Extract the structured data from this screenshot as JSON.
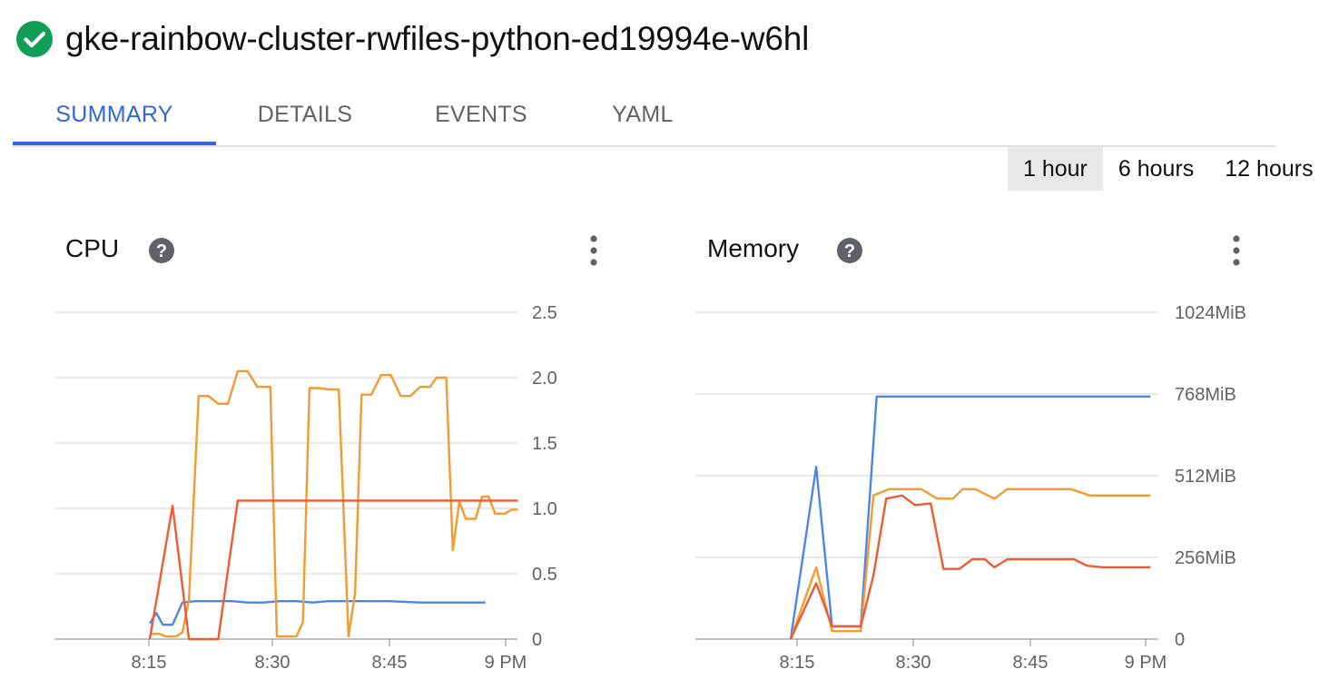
{
  "header": {
    "status": "check-circle-icon",
    "title": "gke-rainbow-cluster-rwfiles-python-ed19994e-w6hl"
  },
  "tabs": [
    {
      "label": "SUMMARY",
      "active": true
    },
    {
      "label": "DETAILS",
      "active": false
    },
    {
      "label": "EVENTS",
      "active": false
    },
    {
      "label": "YAML",
      "active": false
    }
  ],
  "time_range": {
    "options": [
      "1 hour",
      "6 hours",
      "12 hours"
    ],
    "selected": "1 hour"
  },
  "colors": {
    "blue": "#4a86e8",
    "orange": "#f49a2e",
    "red": "#ee5a31",
    "accent": "#3367d6",
    "success": "#0f9d58"
  },
  "chart_data": [
    {
      "type": "line",
      "title": "CPU",
      "x_ticks": [
        "8:15",
        "8:30",
        "8:45",
        "9 PM"
      ],
      "y_ticks": [
        "0",
        "0.5",
        "1.0",
        "1.5",
        "2.0",
        "2.5"
      ],
      "ylim": [
        0,
        2.5
      ],
      "grid": true,
      "series": [
        {
          "color": "#4a86e8",
          "points": [
            [
              8.2,
              0.12
            ],
            [
              8.4,
              0.2
            ],
            [
              8.6,
              0.11
            ],
            [
              8.9,
              0.11
            ],
            [
              9.2,
              0.28
            ],
            [
              9.6,
              0.29
            ],
            [
              10.2,
              0.29
            ],
            [
              10.7,
              0.29
            ],
            [
              11.2,
              0.28
            ],
            [
              11.7,
              0.28
            ],
            [
              12.2,
              0.29
            ],
            [
              12.7,
              0.29
            ],
            [
              13.2,
              0.28
            ],
            [
              13.7,
              0.29
            ],
            [
              14.5,
              0.29
            ],
            [
              15.5,
              0.29
            ],
            [
              16.5,
              0.28
            ],
            [
              17.5,
              0.28
            ],
            [
              18.5,
              0.28
            ]
          ]
        },
        {
          "color": "#f49a2e",
          "points": [
            [
              8.2,
              0.04
            ],
            [
              8.5,
              0.04
            ],
            [
              8.7,
              0.02
            ],
            [
              9.0,
              0.02
            ],
            [
              9.2,
              0.05
            ],
            [
              9.4,
              0.3
            ],
            [
              9.7,
              1.86
            ],
            [
              10.0,
              1.86
            ],
            [
              10.3,
              1.8
            ],
            [
              10.6,
              1.8
            ],
            [
              10.9,
              2.05
            ],
            [
              11.2,
              2.05
            ],
            [
              11.5,
              1.93
            ],
            [
              11.9,
              1.93
            ],
            [
              12.1,
              0.02
            ],
            [
              12.4,
              0.02
            ],
            [
              12.7,
              0.02
            ],
            [
              12.9,
              0.13
            ],
            [
              13.1,
              1.92
            ],
            [
              13.4,
              1.92
            ],
            [
              13.7,
              1.91
            ],
            [
              14.0,
              1.91
            ],
            [
              14.3,
              0.02
            ],
            [
              14.5,
              0.35
            ],
            [
              14.7,
              1.87
            ],
            [
              15.0,
              1.87
            ],
            [
              15.3,
              2.02
            ],
            [
              15.6,
              2.02
            ],
            [
              15.9,
              1.86
            ],
            [
              16.2,
              1.86
            ],
            [
              16.5,
              1.93
            ],
            [
              16.8,
              1.93
            ],
            [
              17.0,
              2.0
            ],
            [
              17.3,
              2.0
            ],
            [
              17.5,
              0.68
            ],
            [
              17.7,
              1.05
            ],
            [
              17.9,
              0.92
            ],
            [
              18.2,
              0.92
            ],
            [
              18.4,
              1.09
            ],
            [
              18.6,
              1.09
            ],
            [
              18.8,
              0.96
            ],
            [
              19.1,
              0.96
            ],
            [
              19.3,
              0.99
            ],
            [
              19.5,
              0.99
            ]
          ]
        },
        {
          "color": "#ee5a31",
          "points": [
            [
              8.2,
              0.0
            ],
            [
              8.9,
              1.02
            ],
            [
              9.4,
              0.0
            ],
            [
              9.9,
              0.0
            ],
            [
              10.3,
              0.0
            ],
            [
              10.9,
              1.06
            ],
            [
              11.5,
              1.06
            ],
            [
              19.5,
              1.06
            ]
          ]
        }
      ]
    },
    {
      "type": "line",
      "title": "Memory",
      "x_ticks": [
        "8:15",
        "8:30",
        "8:45",
        "9 PM"
      ],
      "y_ticks": [
        "0",
        "256MiB",
        "512MiB",
        "768MiB",
        "1024MiB"
      ],
      "ylim": [
        0,
        1024
      ],
      "grid": true,
      "series": [
        {
          "color": "#4a86e8",
          "points": [
            [
              8.2,
              0
            ],
            [
              9.0,
              540
            ],
            [
              9.5,
              40
            ],
            [
              10.4,
              40
            ],
            [
              10.9,
              760
            ],
            [
              19.5,
              760
            ]
          ]
        },
        {
          "color": "#f49a2e",
          "points": [
            [
              8.2,
              0
            ],
            [
              9.0,
              225
            ],
            [
              9.5,
              25
            ],
            [
              10.4,
              25
            ],
            [
              10.8,
              450
            ],
            [
              11.3,
              470
            ],
            [
              11.6,
              470
            ],
            [
              12.3,
              470
            ],
            [
              12.8,
              440
            ],
            [
              13.3,
              440
            ],
            [
              13.6,
              470
            ],
            [
              14.0,
              470
            ],
            [
              14.6,
              440
            ],
            [
              15.0,
              470
            ],
            [
              15.5,
              470
            ],
            [
              16.5,
              470
            ],
            [
              17.0,
              470
            ],
            [
              17.6,
              450
            ],
            [
              18.4,
              450
            ],
            [
              19.5,
              450
            ]
          ]
        },
        {
          "color": "#ee5a31",
          "points": [
            [
              8.2,
              0
            ],
            [
              9.0,
              175
            ],
            [
              9.5,
              40
            ],
            [
              10.4,
              40
            ],
            [
              10.8,
              200
            ],
            [
              11.2,
              440
            ],
            [
              11.7,
              450
            ],
            [
              12.1,
              420
            ],
            [
              12.6,
              425
            ],
            [
              13.0,
              220
            ],
            [
              13.5,
              220
            ],
            [
              13.9,
              250
            ],
            [
              14.3,
              250
            ],
            [
              14.6,
              225
            ],
            [
              15.0,
              250
            ],
            [
              15.5,
              250
            ],
            [
              16.5,
              250
            ],
            [
              17.1,
              250
            ],
            [
              17.5,
              230
            ],
            [
              18.0,
              225
            ],
            [
              19.5,
              225
            ]
          ]
        }
      ]
    }
  ]
}
